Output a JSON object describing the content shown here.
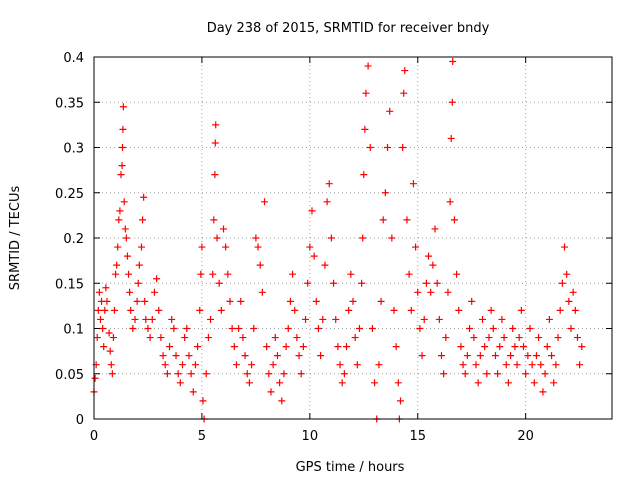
{
  "chart_data": {
    "type": "scatter",
    "title": "Day 238 of 2015, SRMTID for receiver bndy",
    "xlabel": "GPS time / hours",
    "ylabel": "SRMTID / TECUs",
    "xlim": [
      0,
      24
    ],
    "ylim": [
      0,
      0.4
    ],
    "xticks": [
      "0",
      "5",
      "10",
      "15",
      "20"
    ],
    "xtick_values": [
      0,
      5,
      10,
      15,
      20
    ],
    "yticks": [
      "0",
      "0.05",
      "0.1",
      "0.15",
      "0.2",
      "0.25",
      "0.3",
      "0.35",
      "0.4"
    ],
    "ytick_values": [
      0,
      0.05,
      0.1,
      0.15,
      0.2,
      0.25,
      0.3,
      0.35,
      0.4
    ],
    "grid": true,
    "marker": "+",
    "series": [
      {
        "name": "SRMTID",
        "color": "#ff0000",
        "points": [
          [
            0.0,
            0.03
          ],
          [
            0.05,
            0.045
          ],
          [
            0.1,
            0.06
          ],
          [
            0.15,
            0.09
          ],
          [
            0.2,
            0.12
          ],
          [
            0.25,
            0.14
          ],
          [
            0.3,
            0.11
          ],
          [
            0.35,
            0.13
          ],
          [
            0.4,
            0.1
          ],
          [
            0.45,
            0.08
          ],
          [
            0.5,
            0.12
          ],
          [
            0.55,
            0.145
          ],
          [
            0.6,
            0.13
          ],
          [
            0.7,
            0.095
          ],
          [
            0.75,
            0.075
          ],
          [
            0.8,
            0.06
          ],
          [
            0.85,
            0.05
          ],
          [
            0.9,
            0.09
          ],
          [
            0.95,
            0.12
          ],
          [
            1.0,
            0.16
          ],
          [
            1.05,
            0.17
          ],
          [
            1.1,
            0.19
          ],
          [
            1.15,
            0.22
          ],
          [
            1.2,
            0.23
          ],
          [
            1.25,
            0.27
          ],
          [
            1.3,
            0.28
          ],
          [
            1.32,
            0.3
          ],
          [
            1.34,
            0.32
          ],
          [
            1.36,
            0.345
          ],
          [
            1.4,
            0.24
          ],
          [
            1.45,
            0.21
          ],
          [
            1.5,
            0.2
          ],
          [
            1.55,
            0.18
          ],
          [
            1.6,
            0.16
          ],
          [
            1.65,
            0.14
          ],
          [
            1.7,
            0.12
          ],
          [
            1.8,
            0.1
          ],
          [
            1.9,
            0.11
          ],
          [
            2.0,
            0.13
          ],
          [
            2.05,
            0.15
          ],
          [
            2.1,
            0.17
          ],
          [
            2.2,
            0.19
          ],
          [
            2.25,
            0.22
          ],
          [
            2.3,
            0.245
          ],
          [
            2.35,
            0.13
          ],
          [
            2.4,
            0.11
          ],
          [
            2.5,
            0.1
          ],
          [
            2.6,
            0.09
          ],
          [
            2.7,
            0.11
          ],
          [
            2.8,
            0.14
          ],
          [
            2.9,
            0.155
          ],
          [
            3.0,
            0.12
          ],
          [
            3.1,
            0.09
          ],
          [
            3.2,
            0.07
          ],
          [
            3.3,
            0.06
          ],
          [
            3.4,
            0.05
          ],
          [
            3.5,
            0.08
          ],
          [
            3.6,
            0.11
          ],
          [
            3.7,
            0.1
          ],
          [
            3.8,
            0.07
          ],
          [
            3.9,
            0.05
          ],
          [
            4.0,
            0.04
          ],
          [
            4.1,
            0.06
          ],
          [
            4.2,
            0.09
          ],
          [
            4.3,
            0.1
          ],
          [
            4.4,
            0.07
          ],
          [
            4.5,
            0.05
          ],
          [
            4.6,
            0.03
          ],
          [
            4.7,
            0.06
          ],
          [
            4.8,
            0.08
          ],
          [
            4.9,
            0.12
          ],
          [
            4.95,
            0.16
          ],
          [
            5.0,
            0.19
          ],
          [
            5.05,
            0.02
          ],
          [
            5.1,
            0.0
          ],
          [
            5.2,
            0.05
          ],
          [
            5.3,
            0.09
          ],
          [
            5.4,
            0.11
          ],
          [
            5.5,
            0.16
          ],
          [
            5.55,
            0.22
          ],
          [
            5.6,
            0.27
          ],
          [
            5.62,
            0.305
          ],
          [
            5.64,
            0.325
          ],
          [
            5.7,
            0.2
          ],
          [
            5.8,
            0.15
          ],
          [
            5.9,
            0.12
          ],
          [
            6.0,
            0.21
          ],
          [
            6.1,
            0.19
          ],
          [
            6.2,
            0.16
          ],
          [
            6.3,
            0.13
          ],
          [
            6.4,
            0.1
          ],
          [
            6.5,
            0.08
          ],
          [
            6.6,
            0.06
          ],
          [
            6.7,
            0.1
          ],
          [
            6.8,
            0.13
          ],
          [
            6.9,
            0.09
          ],
          [
            7.0,
            0.07
          ],
          [
            7.1,
            0.05
          ],
          [
            7.2,
            0.04
          ],
          [
            7.3,
            0.06
          ],
          [
            7.4,
            0.1
          ],
          [
            7.5,
            0.2
          ],
          [
            7.6,
            0.19
          ],
          [
            7.7,
            0.17
          ],
          [
            7.8,
            0.14
          ],
          [
            7.9,
            0.24
          ],
          [
            8.0,
            0.08
          ],
          [
            8.1,
            0.05
          ],
          [
            8.2,
            0.03
          ],
          [
            8.3,
            0.06
          ],
          [
            8.4,
            0.09
          ],
          [
            8.5,
            0.07
          ],
          [
            8.6,
            0.04
          ],
          [
            8.7,
            0.02
          ],
          [
            8.8,
            0.05
          ],
          [
            8.9,
            0.08
          ],
          [
            9.0,
            0.1
          ],
          [
            9.1,
            0.13
          ],
          [
            9.2,
            0.16
          ],
          [
            9.3,
            0.12
          ],
          [
            9.4,
            0.09
          ],
          [
            9.5,
            0.07
          ],
          [
            9.6,
            0.05
          ],
          [
            9.7,
            0.08
          ],
          [
            9.8,
            0.11
          ],
          [
            9.9,
            0.15
          ],
          [
            10.0,
            0.19
          ],
          [
            10.1,
            0.23
          ],
          [
            10.2,
            0.18
          ],
          [
            10.3,
            0.13
          ],
          [
            10.4,
            0.1
          ],
          [
            10.5,
            0.07
          ],
          [
            10.6,
            0.11
          ],
          [
            10.7,
            0.17
          ],
          [
            10.8,
            0.24
          ],
          [
            10.9,
            0.26
          ],
          [
            11.0,
            0.2
          ],
          [
            11.1,
            0.15
          ],
          [
            11.2,
            0.11
          ],
          [
            11.3,
            0.08
          ],
          [
            11.4,
            0.06
          ],
          [
            11.5,
            0.04
          ],
          [
            11.6,
            0.05
          ],
          [
            11.7,
            0.08
          ],
          [
            11.8,
            0.12
          ],
          [
            11.9,
            0.16
          ],
          [
            12.0,
            0.13
          ],
          [
            12.1,
            0.09
          ],
          [
            12.2,
            0.06
          ],
          [
            12.3,
            0.1
          ],
          [
            12.4,
            0.15
          ],
          [
            12.45,
            0.2
          ],
          [
            12.5,
            0.27
          ],
          [
            12.55,
            0.32
          ],
          [
            12.6,
            0.36
          ],
          [
            12.7,
            0.39
          ],
          [
            12.8,
            0.3
          ],
          [
            12.9,
            0.1
          ],
          [
            13.0,
            0.04
          ],
          [
            13.1,
            0.0
          ],
          [
            13.2,
            0.06
          ],
          [
            13.3,
            0.13
          ],
          [
            13.4,
            0.22
          ],
          [
            13.5,
            0.25
          ],
          [
            13.6,
            0.3
          ],
          [
            13.7,
            0.34
          ],
          [
            13.8,
            0.2
          ],
          [
            13.9,
            0.12
          ],
          [
            14.0,
            0.08
          ],
          [
            14.1,
            0.04
          ],
          [
            14.15,
            0.0
          ],
          [
            14.2,
            0.02
          ],
          [
            14.3,
            0.3
          ],
          [
            14.35,
            0.36
          ],
          [
            14.4,
            0.385
          ],
          [
            14.5,
            0.22
          ],
          [
            14.6,
            0.16
          ],
          [
            14.7,
            0.12
          ],
          [
            14.8,
            0.26
          ],
          [
            14.9,
            0.19
          ],
          [
            15.0,
            0.14
          ],
          [
            15.1,
            0.1
          ],
          [
            15.2,
            0.07
          ],
          [
            15.3,
            0.11
          ],
          [
            15.4,
            0.15
          ],
          [
            15.5,
            0.18
          ],
          [
            15.6,
            0.14
          ],
          [
            15.7,
            0.17
          ],
          [
            15.8,
            0.21
          ],
          [
            15.9,
            0.15
          ],
          [
            16.0,
            0.11
          ],
          [
            16.1,
            0.07
          ],
          [
            16.2,
            0.05
          ],
          [
            16.3,
            0.09
          ],
          [
            16.4,
            0.14
          ],
          [
            16.5,
            0.24
          ],
          [
            16.55,
            0.31
          ],
          [
            16.6,
            0.35
          ],
          [
            16.62,
            0.395
          ],
          [
            16.7,
            0.22
          ],
          [
            16.8,
            0.16
          ],
          [
            16.9,
            0.12
          ],
          [
            17.0,
            0.08
          ],
          [
            17.1,
            0.06
          ],
          [
            17.2,
            0.05
          ],
          [
            17.3,
            0.07
          ],
          [
            17.4,
            0.1
          ],
          [
            17.5,
            0.13
          ],
          [
            17.6,
            0.09
          ],
          [
            17.7,
            0.06
          ],
          [
            17.8,
            0.04
          ],
          [
            17.9,
            0.07
          ],
          [
            18.0,
            0.11
          ],
          [
            18.1,
            0.08
          ],
          [
            18.2,
            0.05
          ],
          [
            18.3,
            0.09
          ],
          [
            18.4,
            0.12
          ],
          [
            18.5,
            0.1
          ],
          [
            18.6,
            0.07
          ],
          [
            18.7,
            0.05
          ],
          [
            18.8,
            0.08
          ],
          [
            18.9,
            0.11
          ],
          [
            19.0,
            0.09
          ],
          [
            19.1,
            0.06
          ],
          [
            19.2,
            0.04
          ],
          [
            19.3,
            0.07
          ],
          [
            19.4,
            0.1
          ],
          [
            19.5,
            0.08
          ],
          [
            19.6,
            0.06
          ],
          [
            19.7,
            0.09
          ],
          [
            19.8,
            0.12
          ],
          [
            19.9,
            0.08
          ],
          [
            20.0,
            0.05
          ],
          [
            20.1,
            0.07
          ],
          [
            20.2,
            0.1
          ],
          [
            20.3,
            0.06
          ],
          [
            20.4,
            0.04
          ],
          [
            20.5,
            0.07
          ],
          [
            20.6,
            0.09
          ],
          [
            20.7,
            0.06
          ],
          [
            20.8,
            0.03
          ],
          [
            20.9,
            0.05
          ],
          [
            21.0,
            0.08
          ],
          [
            21.1,
            0.11
          ],
          [
            21.2,
            0.07
          ],
          [
            21.3,
            0.04
          ],
          [
            21.4,
            0.06
          ],
          [
            21.5,
            0.09
          ],
          [
            21.6,
            0.12
          ],
          [
            21.7,
            0.15
          ],
          [
            21.8,
            0.19
          ],
          [
            21.9,
            0.16
          ],
          [
            22.0,
            0.13
          ],
          [
            22.1,
            0.1
          ],
          [
            22.2,
            0.14
          ],
          [
            22.3,
            0.12
          ],
          [
            22.4,
            0.09
          ],
          [
            22.5,
            0.06
          ],
          [
            22.6,
            0.08
          ]
        ]
      }
    ]
  }
}
